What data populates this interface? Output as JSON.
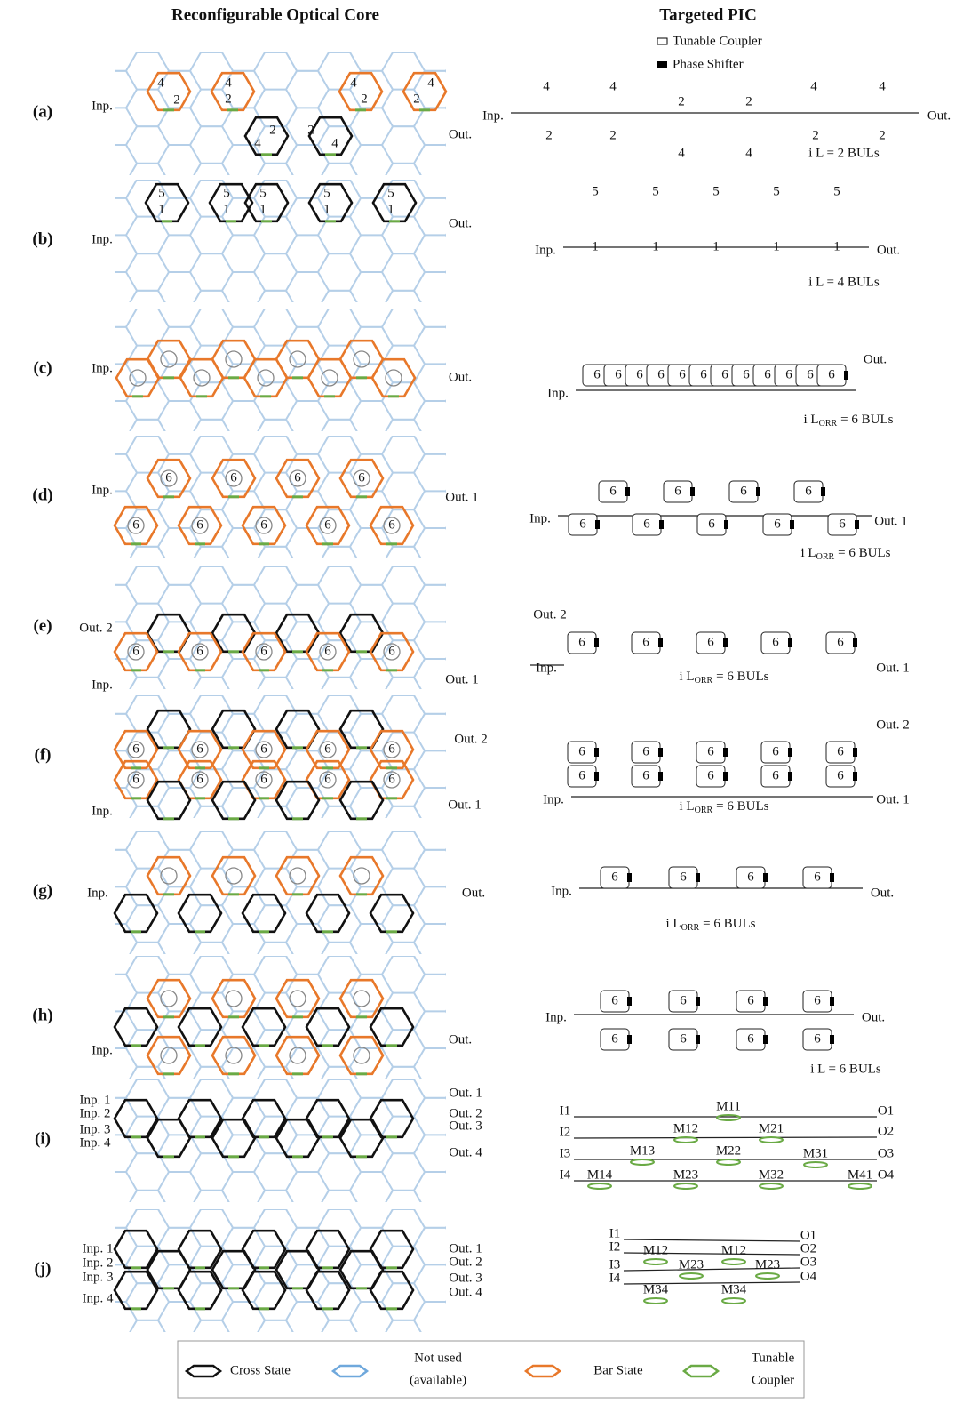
{
  "headers": {
    "left": "Reconfigurable Optical Core",
    "right": "Targeted PIC"
  },
  "pic_legend": [
    "Tunable Coupler",
    "Phase Shifter"
  ],
  "rows": [
    {
      "label": "(a)",
      "core": [
        "Inp.",
        "Out.",
        "4",
        "2",
        "4",
        "2",
        "2",
        "4",
        "2",
        "4",
        "4",
        "2",
        "4",
        "2"
      ],
      "pic": [
        "Inp.",
        "Out.",
        "4",
        "4",
        "2",
        "2",
        "2",
        "2",
        "4",
        "4",
        "4",
        "4",
        "2",
        "2",
        "i L = 2 BULs"
      ]
    },
    {
      "label": "(b)",
      "core": [
        "5",
        "5",
        "5",
        "5",
        "5",
        "1",
        "1",
        "1",
        "1",
        "1",
        "Inp.",
        "Out."
      ],
      "pic": [
        "5",
        "5",
        "5",
        "5",
        "5",
        "Inp.",
        "1",
        "1",
        "1",
        "1",
        "1",
        "Out.",
        "i L = 4 BULs"
      ]
    },
    {
      "label": "(c)",
      "core": [
        "Inp.",
        "Out."
      ],
      "pic": [
        "6",
        "6",
        "6",
        "6",
        "6",
        "6",
        "6",
        "6",
        "6",
        "6",
        "6",
        "6",
        "Inp.",
        "Out.",
        {
          "text": "i L",
          "sub": "ORR",
          "after": "= 6 BULs"
        }
      ]
    },
    {
      "label": "(d)",
      "core": [
        "Inp.",
        "Out. 1",
        "6",
        "6",
        "6",
        "6",
        "6",
        "6",
        "6",
        "6",
        "6"
      ],
      "pic": [
        "6",
        "6",
        "6",
        "6",
        "6",
        "6",
        "6",
        "6",
        "6",
        "Inp.",
        "Out. 1",
        {
          "text": "i L",
          "sub": "ORR",
          "after": "= 6 BULs"
        }
      ]
    },
    {
      "label": "(e)",
      "core": [
        "Out. 2",
        "Inp.",
        "Out. 1",
        "6",
        "6",
        "6",
        "6",
        "6"
      ],
      "pic": [
        "Out. 2",
        "6",
        "6",
        "6",
        "6",
        "6",
        "Inp.",
        "Out. 1",
        {
          "text": "i L",
          "sub": "ORR",
          "after": "= 6 BULs"
        }
      ]
    },
    {
      "label": "(f)",
      "core": [
        "Out. 2",
        "Inp.",
        "Out. 1",
        "6",
        "6",
        "6",
        "6",
        "6",
        "6",
        "6",
        "6",
        "6",
        "6"
      ],
      "pic": [
        "Out. 2",
        "6",
        "6",
        "6",
        "6",
        "6",
        "6",
        "6",
        "6",
        "6",
        "6",
        "Inp.",
        "Out. 1",
        {
          "text": "i L",
          "sub": "ORR",
          "after": "= 6 BULs"
        }
      ]
    },
    {
      "label": "(g)",
      "core": [
        "Inp.",
        "Out."
      ],
      "pic": [
        "Inp.",
        "6",
        "6",
        "6",
        "6",
        "Out.",
        {
          "text": "i L",
          "sub": "ORR",
          "after": "= 6 BULs"
        }
      ]
    },
    {
      "label": "(h)",
      "core": [
        "Out.",
        "Inp."
      ],
      "pic": [
        "Inp.",
        "6",
        "6",
        "6",
        "6",
        "6",
        "6",
        "6",
        "6",
        "Out.",
        "i L = 6 BULs"
      ]
    },
    {
      "label": "(i)",
      "core": [
        "Inp. 1",
        "Inp. 2",
        "Inp. 3",
        "Inp. 4",
        "Out. 1",
        "Out. 2",
        "Out. 3",
        "Out. 4"
      ],
      "pic": [
        "I1",
        "I2",
        "I3",
        "I4",
        "O1",
        "O2",
        "O3",
        "O4",
        "M11",
        "M12",
        "M21",
        "M13",
        "M22",
        "M31",
        "M14",
        "M23",
        "M32",
        "M41"
      ]
    },
    {
      "label": "(j)",
      "core": [
        "Inp. 1",
        "Inp. 2",
        "Inp. 3",
        "Inp. 4",
        "Out. 1",
        "Out. 2",
        "Out. 3",
        "Out. 4"
      ],
      "pic": [
        "I1",
        "I2",
        "I3",
        "I4",
        "O1",
        "O2",
        "O3",
        "O4",
        "M12",
        "M12",
        "M23",
        "M23",
        "M34",
        "M34"
      ]
    }
  ],
  "legend": {
    "cross": "Cross State",
    "unused": [
      "Not used",
      "(available)"
    ],
    "bar": "Bar State",
    "coupler": [
      "Tunable",
      "Coupler"
    ]
  }
}
